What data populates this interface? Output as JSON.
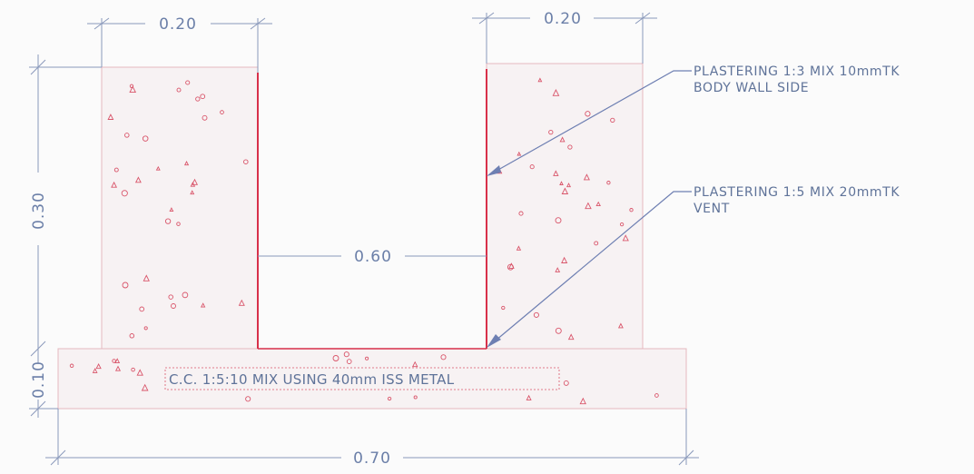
{
  "dimensions": {
    "left_wall_width": "0.20",
    "right_wall_width": "0.20",
    "wall_height": "0.30",
    "vent_width": "0.60",
    "base_thickness": "0.10",
    "base_width": "0.70"
  },
  "notes": {
    "plaster_wall": {
      "line1": "PLASTERING 1:3 MIX 10mmTK",
      "line2": "BODY WALL SIDE"
    },
    "plaster_vent": {
      "line1": "PLASTERING 1:5 MIX 20mmTK",
      "line2": "VENT"
    }
  },
  "base_spec": "C.C. 1:5:10 MIX USING 40mm ISS METAL",
  "colors": {
    "ink": "#5f7399",
    "plaster": "#d8304a",
    "concrete": "#f7f2f3"
  }
}
